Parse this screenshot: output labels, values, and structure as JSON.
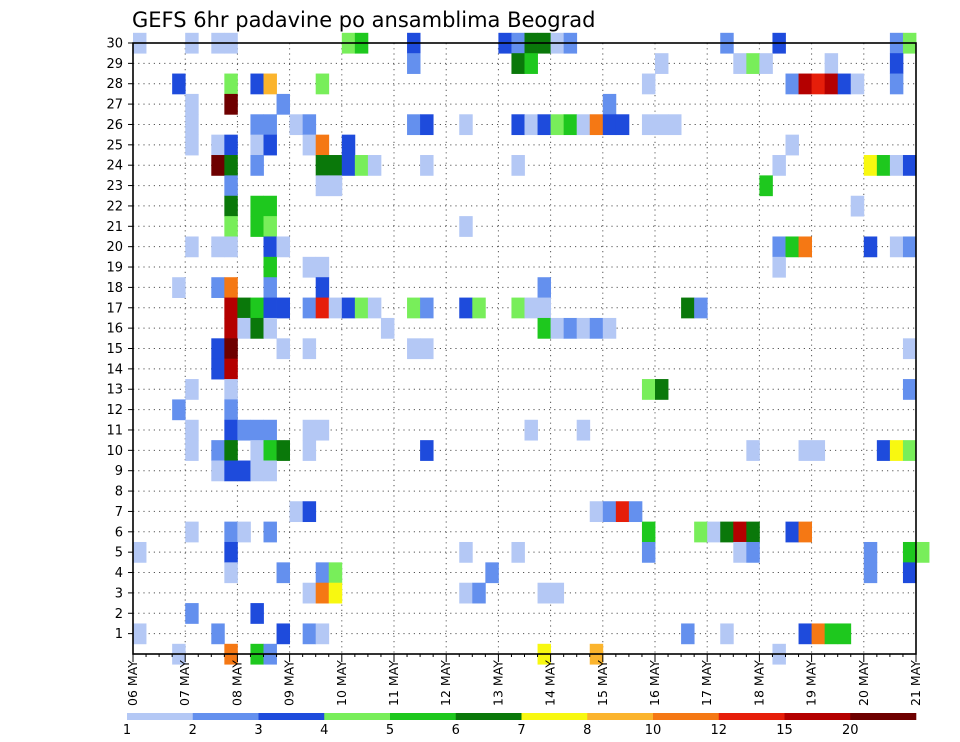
{
  "chart_data": {
    "type": "heatmap",
    "title": "GEFS 6hr padavine po ansamblima Beograd",
    "xlabel": "",
    "ylabel": "",
    "x_ticks": [
      "06 MAY",
      "07 MAY",
      "08 MAY",
      "09 MAY",
      "10 MAY",
      "11 MAY",
      "12 MAY",
      "13 MAY",
      "14 MAY",
      "15 MAY",
      "16 MAY",
      "17 MAY",
      "18 MAY",
      "19 MAY",
      "20 MAY",
      "21 MAY"
    ],
    "y_ticks": [
      "1",
      "2",
      "3",
      "4",
      "5",
      "6",
      "7",
      "8",
      "9",
      "10",
      "11",
      "12",
      "13",
      "14",
      "15",
      "16",
      "17",
      "18",
      "19",
      "20",
      "21",
      "22",
      "23",
      "24",
      "25",
      "26",
      "27",
      "28",
      "29",
      "30"
    ],
    "x_unit": "6-hour steps from 06 MAY 00Z",
    "x_range": [
      0,
      60
    ],
    "y_range": [
      0,
      30
    ],
    "grid": true,
    "colorbar": {
      "levels": [
        "1",
        "2",
        "3",
        "4",
        "5",
        "6",
        "7",
        "8",
        "10",
        "12",
        "15",
        "20"
      ],
      "colors": [
        "#b4c8f5",
        "#6490ee",
        "#1e4bdc",
        "#78ee5a",
        "#1ec81e",
        "#0a780a",
        "#f8f810",
        "#fbb42d",
        "#f57814",
        "#e61e0a",
        "#b40000",
        "#6e0000"
      ]
    },
    "cells": [
      [
        0,
        30,
        1
      ],
      [
        4,
        30,
        1
      ],
      [
        6,
        30,
        1
      ],
      [
        7,
        30,
        1
      ],
      [
        16,
        30,
        4
      ],
      [
        17,
        30,
        5
      ],
      [
        21,
        30,
        3
      ],
      [
        28,
        30,
        3
      ],
      [
        29,
        30,
        2
      ],
      [
        30,
        30,
        6
      ],
      [
        31,
        30,
        6
      ],
      [
        32,
        30,
        1
      ],
      [
        33,
        30,
        2
      ],
      [
        45,
        30,
        2
      ],
      [
        49,
        30,
        3
      ],
      [
        58,
        30,
        2
      ],
      [
        59,
        30,
        4
      ],
      [
        21,
        29,
        2
      ],
      [
        29,
        29,
        6
      ],
      [
        30,
        29,
        5
      ],
      [
        40,
        29,
        1
      ],
      [
        46,
        29,
        1
      ],
      [
        47,
        29,
        4
      ],
      [
        48,
        29,
        1
      ],
      [
        53,
        29,
        1
      ],
      [
        58,
        29,
        3
      ],
      [
        3,
        28,
        3
      ],
      [
        7,
        28,
        4
      ],
      [
        9,
        28,
        3
      ],
      [
        10,
        28,
        8
      ],
      [
        14,
        28,
        4
      ],
      [
        39,
        28,
        1
      ],
      [
        50,
        28,
        2
      ],
      [
        51,
        28,
        11
      ],
      [
        52,
        28,
        10
      ],
      [
        53,
        28,
        11
      ],
      [
        54,
        28,
        3
      ],
      [
        55,
        28,
        1
      ],
      [
        58,
        28,
        2
      ],
      [
        4,
        27,
        1
      ],
      [
        7,
        27,
        12
      ],
      [
        11,
        27,
        2
      ],
      [
        36,
        27,
        2
      ],
      [
        4,
        26,
        1
      ],
      [
        9,
        26,
        2
      ],
      [
        10,
        26,
        2
      ],
      [
        12,
        26,
        1
      ],
      [
        13,
        26,
        2
      ],
      [
        21,
        26,
        2
      ],
      [
        22,
        26,
        3
      ],
      [
        25,
        26,
        1
      ],
      [
        29,
        26,
        3
      ],
      [
        30,
        26,
        1
      ],
      [
        31,
        26,
        3
      ],
      [
        32,
        26,
        4
      ],
      [
        33,
        26,
        5
      ],
      [
        34,
        26,
        1
      ],
      [
        35,
        26,
        9
      ],
      [
        36,
        26,
        3
      ],
      [
        37,
        26,
        3
      ],
      [
        39,
        26,
        1
      ],
      [
        40,
        26,
        1
      ],
      [
        41,
        26,
        1
      ],
      [
        4,
        25,
        1
      ],
      [
        6,
        25,
        1
      ],
      [
        7,
        25,
        3
      ],
      [
        9,
        25,
        1
      ],
      [
        10,
        25,
        3
      ],
      [
        13,
        25,
        1
      ],
      [
        14,
        25,
        9
      ],
      [
        16,
        25,
        3
      ],
      [
        50,
        25,
        1
      ],
      [
        6,
        24,
        12
      ],
      [
        7,
        24,
        6
      ],
      [
        9,
        24,
        2
      ],
      [
        14,
        24,
        6
      ],
      [
        15,
        24,
        6
      ],
      [
        16,
        24,
        3
      ],
      [
        17,
        24,
        4
      ],
      [
        18,
        24,
        1
      ],
      [
        22,
        24,
        1
      ],
      [
        29,
        24,
        1
      ],
      [
        49,
        24,
        1
      ],
      [
        56,
        24,
        7
      ],
      [
        57,
        24,
        5
      ],
      [
        58,
        24,
        1
      ],
      [
        59,
        24,
        3
      ],
      [
        7,
        23,
        2
      ],
      [
        14,
        23,
        1
      ],
      [
        15,
        23,
        1
      ],
      [
        48,
        23,
        5
      ],
      [
        7,
        22,
        6
      ],
      [
        9,
        22,
        5
      ],
      [
        10,
        22,
        5
      ],
      [
        55,
        22,
        1
      ],
      [
        7,
        21,
        4
      ],
      [
        9,
        21,
        5
      ],
      [
        10,
        21,
        4
      ],
      [
        25,
        21,
        1
      ],
      [
        4,
        20,
        1
      ],
      [
        6,
        20,
        1
      ],
      [
        7,
        20,
        1
      ],
      [
        10,
        20,
        3
      ],
      [
        11,
        20,
        1
      ],
      [
        49,
        20,
        2
      ],
      [
        50,
        20,
        5
      ],
      [
        51,
        20,
        9
      ],
      [
        49,
        19,
        1
      ],
      [
        56,
        20,
        3
      ],
      [
        58,
        20,
        1
      ],
      [
        59,
        20,
        2
      ],
      [
        10,
        19,
        5
      ],
      [
        13,
        19,
        1
      ],
      [
        14,
        19,
        1
      ],
      [
        3,
        18,
        1
      ],
      [
        6,
        18,
        2
      ],
      [
        7,
        18,
        9
      ],
      [
        10,
        18,
        2
      ],
      [
        14,
        18,
        3
      ],
      [
        31,
        18,
        2
      ],
      [
        7,
        17,
        11
      ],
      [
        8,
        17,
        6
      ],
      [
        9,
        17,
        5
      ],
      [
        10,
        17,
        3
      ],
      [
        11,
        17,
        3
      ],
      [
        13,
        17,
        2
      ],
      [
        14,
        17,
        10
      ],
      [
        15,
        17,
        1
      ],
      [
        16,
        17,
        3
      ],
      [
        17,
        17,
        4
      ],
      [
        18,
        17,
        1
      ],
      [
        21,
        17,
        4
      ],
      [
        22,
        17,
        2
      ],
      [
        25,
        17,
        3
      ],
      [
        26,
        17,
        4
      ],
      [
        29,
        17,
        4
      ],
      [
        30,
        17,
        1
      ],
      [
        31,
        17,
        1
      ],
      [
        42,
        17,
        6
      ],
      [
        43,
        17,
        2
      ],
      [
        7,
        16,
        11
      ],
      [
        8,
        16,
        1
      ],
      [
        9,
        16,
        6
      ],
      [
        10,
        16,
        1
      ],
      [
        19,
        16,
        1
      ],
      [
        31,
        16,
        5
      ],
      [
        32,
        16,
        1
      ],
      [
        33,
        16,
        2
      ],
      [
        34,
        16,
        1
      ],
      [
        35,
        16,
        2
      ],
      [
        36,
        16,
        1
      ],
      [
        6,
        15,
        3
      ],
      [
        7,
        15,
        12
      ],
      [
        11,
        15,
        1
      ],
      [
        13,
        15,
        1
      ],
      [
        21,
        15,
        1
      ],
      [
        22,
        15,
        1
      ],
      [
        59,
        15,
        1
      ],
      [
        6,
        14,
        3
      ],
      [
        7,
        14,
        11
      ],
      [
        4,
        13,
        1
      ],
      [
        7,
        13,
        1
      ],
      [
        39,
        13,
        4
      ],
      [
        40,
        13,
        6
      ],
      [
        59,
        13,
        2
      ],
      [
        3,
        12,
        2
      ],
      [
        7,
        12,
        2
      ],
      [
        4,
        11,
        1
      ],
      [
        7,
        11,
        3
      ],
      [
        8,
        11,
        2
      ],
      [
        9,
        11,
        2
      ],
      [
        10,
        11,
        2
      ],
      [
        13,
        11,
        1
      ],
      [
        14,
        11,
        1
      ],
      [
        30,
        11,
        1
      ],
      [
        34,
        11,
        1
      ],
      [
        4,
        10,
        1
      ],
      [
        6,
        10,
        2
      ],
      [
        7,
        10,
        6
      ],
      [
        9,
        10,
        1
      ],
      [
        10,
        10,
        5
      ],
      [
        11,
        10,
        6
      ],
      [
        13,
        10,
        1
      ],
      [
        22,
        10,
        3
      ],
      [
        47,
        10,
        1
      ],
      [
        51,
        10,
        1
      ],
      [
        52,
        10,
        1
      ],
      [
        57,
        10,
        3
      ],
      [
        58,
        10,
        7
      ],
      [
        59,
        10,
        4
      ],
      [
        6,
        9,
        1
      ],
      [
        7,
        9,
        3
      ],
      [
        8,
        9,
        3
      ],
      [
        9,
        9,
        1
      ],
      [
        10,
        9,
        1
      ],
      [
        12,
        7,
        1
      ],
      [
        13,
        7,
        3
      ],
      [
        35,
        7,
        1
      ],
      [
        36,
        7,
        2
      ],
      [
        37,
        7,
        10
      ],
      [
        38,
        7,
        2
      ],
      [
        4,
        6,
        1
      ],
      [
        7,
        6,
        2
      ],
      [
        8,
        6,
        1
      ],
      [
        10,
        6,
        2
      ],
      [
        39,
        6,
        5
      ],
      [
        43,
        6,
        4
      ],
      [
        44,
        6,
        1
      ],
      [
        45,
        6,
        6
      ],
      [
        46,
        6,
        11
      ],
      [
        47,
        6,
        6
      ],
      [
        50,
        6,
        3
      ],
      [
        51,
        6,
        9
      ],
      [
        0,
        5,
        1
      ],
      [
        7,
        5,
        3
      ],
      [
        25,
        5,
        1
      ],
      [
        29,
        5,
        1
      ],
      [
        39,
        5,
        2
      ],
      [
        46,
        5,
        1
      ],
      [
        47,
        5,
        2
      ],
      [
        56,
        5,
        2
      ],
      [
        59,
        5,
        5
      ],
      [
        60,
        5,
        4
      ],
      [
        7,
        4,
        1
      ],
      [
        11,
        4,
        2
      ],
      [
        14,
        4,
        2
      ],
      [
        15,
        4,
        4
      ],
      [
        27,
        4,
        2
      ],
      [
        56,
        4,
        2
      ],
      [
        59,
        4,
        3
      ],
      [
        13,
        3,
        1
      ],
      [
        14,
        3,
        9
      ],
      [
        15,
        3,
        7
      ],
      [
        25,
        3,
        1
      ],
      [
        26,
        3,
        2
      ],
      [
        31,
        3,
        1
      ],
      [
        32,
        3,
        1
      ],
      [
        4,
        2,
        2
      ],
      [
        9,
        2,
        3
      ],
      [
        0,
        1,
        1
      ],
      [
        6,
        1,
        2
      ],
      [
        11,
        1,
        3
      ],
      [
        13,
        1,
        2
      ],
      [
        14,
        1,
        1
      ],
      [
        42,
        1,
        2
      ],
      [
        45,
        1,
        1
      ],
      [
        51,
        1,
        3
      ],
      [
        52,
        1,
        9
      ],
      [
        53,
        1,
        5
      ],
      [
        54,
        1,
        5
      ],
      [
        3,
        0,
        1
      ],
      [
        7,
        0,
        9
      ],
      [
        9,
        0,
        5
      ],
      [
        10,
        0,
        2
      ],
      [
        31,
        0,
        7
      ],
      [
        35,
        0,
        8
      ],
      [
        49,
        0,
        1
      ]
    ]
  }
}
